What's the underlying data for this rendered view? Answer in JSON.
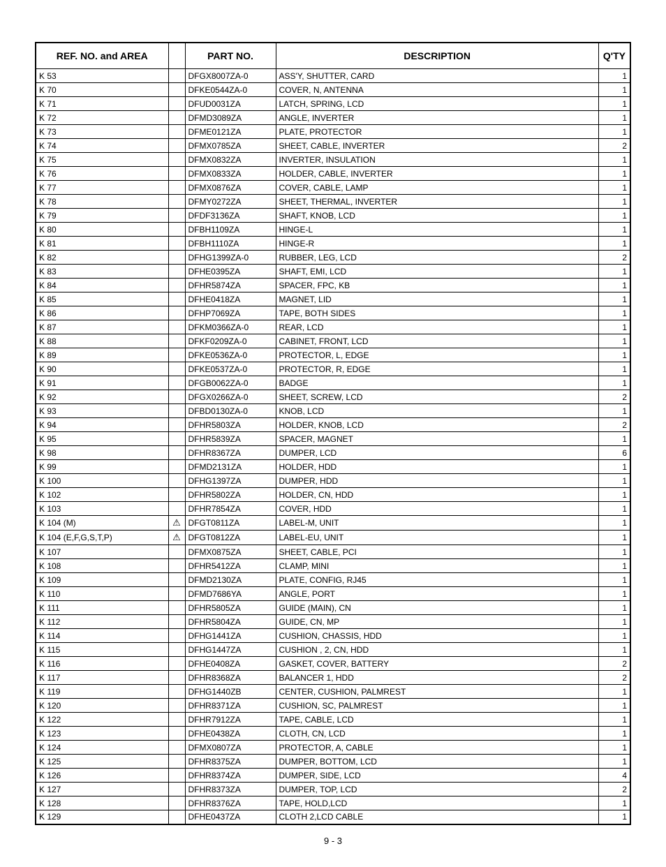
{
  "headers": {
    "ref": "REF. NO. and AREA",
    "warn": "",
    "part": "PART NO.",
    "desc": "DESCRIPTION",
    "qty": "Q'TY"
  },
  "rows": [
    {
      "ref": "K 53",
      "warn": "",
      "part": "DFGX8007ZA-0",
      "desc": "ASS'Y, SHUTTER, CARD",
      "qty": "1"
    },
    {
      "ref": "K 70",
      "warn": "",
      "part": "DFKE0544ZA-0",
      "desc": "COVER, N, ANTENNA",
      "qty": "1"
    },
    {
      "ref": "K 71",
      "warn": "",
      "part": "DFUD0031ZA",
      "desc": "LATCH, SPRING, LCD",
      "qty": "1"
    },
    {
      "ref": "K 72",
      "warn": "",
      "part": "DFMD3089ZA",
      "desc": "ANGLE, INVERTER",
      "qty": "1"
    },
    {
      "ref": "K 73",
      "warn": "",
      "part": "DFME0121ZA",
      "desc": "PLATE, PROTECTOR",
      "qty": "1"
    },
    {
      "ref": "K 74",
      "warn": "",
      "part": "DFMX0785ZA",
      "desc": "SHEET, CABLE, INVERTER",
      "qty": "2"
    },
    {
      "ref": "K 75",
      "warn": "",
      "part": "DFMX0832ZA",
      "desc": "INVERTER, INSULATION",
      "qty": "1"
    },
    {
      "ref": "K 76",
      "warn": "",
      "part": "DFMX0833ZA",
      "desc": "HOLDER, CABLE, INVERTER",
      "qty": "1"
    },
    {
      "ref": "K 77",
      "warn": "",
      "part": "DFMX0876ZA",
      "desc": "COVER, CABLE, LAMP",
      "qty": "1"
    },
    {
      "ref": "K 78",
      "warn": "",
      "part": "DFMY0272ZA",
      "desc": "SHEET, THERMAL, INVERTER",
      "qty": "1"
    },
    {
      "ref": "K 79",
      "warn": "",
      "part": "DFDF3136ZA",
      "desc": "SHAFT, KNOB, LCD",
      "qty": "1"
    },
    {
      "ref": "K 80",
      "warn": "",
      "part": "DFBH1109ZA",
      "desc": "HINGE-L",
      "qty": "1"
    },
    {
      "ref": "K 81",
      "warn": "",
      "part": "DFBH1110ZA",
      "desc": "HINGE-R",
      "qty": "1"
    },
    {
      "ref": "K 82",
      "warn": "",
      "part": "DFHG1399ZA-0",
      "desc": "RUBBER, LEG, LCD",
      "qty": "2"
    },
    {
      "ref": "K 83",
      "warn": "",
      "part": "DFHE0395ZA",
      "desc": "SHAFT, EMI, LCD",
      "qty": "1"
    },
    {
      "ref": "K 84",
      "warn": "",
      "part": "DFHR5874ZA",
      "desc": "SPACER, FPC, KB",
      "qty": "1"
    },
    {
      "ref": "K 85",
      "warn": "",
      "part": "DFHE0418ZA",
      "desc": "MAGNET, LID",
      "qty": "1"
    },
    {
      "ref": "K 86",
      "warn": "",
      "part": "DFHP7069ZA",
      "desc": "TAPE, BOTH SIDES",
      "qty": "1"
    },
    {
      "ref": "K 87",
      "warn": "",
      "part": "DFKM0366ZA-0",
      "desc": "REAR, LCD",
      "qty": "1"
    },
    {
      "ref": "K 88",
      "warn": "",
      "part": "DFKF0209ZA-0",
      "desc": "CABINET, FRONT, LCD",
      "qty": "1"
    },
    {
      "ref": "K 89",
      "warn": "",
      "part": "DFKE0536ZA-0",
      "desc": "PROTECTOR, L, EDGE",
      "qty": "1"
    },
    {
      "ref": "K 90",
      "warn": "",
      "part": "DFKE0537ZA-0",
      "desc": "PROTECTOR, R, EDGE",
      "qty": "1"
    },
    {
      "ref": "K 91",
      "warn": "",
      "part": "DFGB0062ZA-0",
      "desc": "BADGE",
      "qty": "1"
    },
    {
      "ref": "K 92",
      "warn": "",
      "part": "DFGX0266ZA-0",
      "desc": "SHEET, SCREW, LCD",
      "qty": "2"
    },
    {
      "ref": "K 93",
      "warn": "",
      "part": "DFBD0130ZA-0",
      "desc": "KNOB, LCD",
      "qty": "1"
    },
    {
      "ref": "K 94",
      "warn": "",
      "part": "DFHR5803ZA",
      "desc": "HOLDER, KNOB, LCD",
      "qty": "2"
    },
    {
      "ref": "K 95",
      "warn": "",
      "part": "DFHR5839ZA",
      "desc": "SPACER, MAGNET",
      "qty": "1"
    },
    {
      "ref": "K 98",
      "warn": "",
      "part": "DFHR8367ZA",
      "desc": "DUMPER, LCD",
      "qty": "6"
    },
    {
      "ref": "K 99",
      "warn": "",
      "part": "DFMD2131ZA",
      "desc": "HOLDER, HDD",
      "qty": "1"
    },
    {
      "ref": "K 100",
      "warn": "",
      "part": "DFHG1397ZA",
      "desc": "DUMPER, HDD",
      "qty": "1"
    },
    {
      "ref": "K 102",
      "warn": "",
      "part": "DFHR5802ZA",
      "desc": "HOLDER, CN, HDD",
      "qty": "1"
    },
    {
      "ref": "K 103",
      "warn": "",
      "part": "DFHR7854ZA",
      "desc": "COVER, HDD",
      "qty": "1"
    },
    {
      "ref": "K 104 (M)",
      "warn": "⚠",
      "part": "DFGT0811ZA",
      "desc": "LABEL-M, UNIT",
      "qty": "1"
    },
    {
      "ref": "K 104 (E,F,G,S,T,P)",
      "warn": "⚠",
      "part": "DFGT0812ZA",
      "desc": "LABEL-EU, UNIT",
      "qty": "1"
    },
    {
      "ref": "K 107",
      "warn": "",
      "part": "DFMX0875ZA",
      "desc": "SHEET, CABLE, PCI",
      "qty": "1"
    },
    {
      "ref": "K 108",
      "warn": "",
      "part": "DFHR5412ZA",
      "desc": "CLAMP, MINI",
      "qty": "1"
    },
    {
      "ref": "K 109",
      "warn": "",
      "part": "DFMD2130ZA",
      "desc": "PLATE, CONFIG, RJ45",
      "qty": "1"
    },
    {
      "ref": "K 110",
      "warn": "",
      "part": "DFMD7686YA",
      "desc": "ANGLE, PORT",
      "qty": "1"
    },
    {
      "ref": "K 111",
      "warn": "",
      "part": "DFHR5805ZA",
      "desc": "GUIDE (MAIN), CN",
      "qty": "1"
    },
    {
      "ref": "K 112",
      "warn": "",
      "part": "DFHR5804ZA",
      "desc": "GUIDE, CN, MP",
      "qty": "1"
    },
    {
      "ref": "K 114",
      "warn": "",
      "part": "DFHG1441ZA",
      "desc": "CUSHION, CHASSIS, HDD",
      "qty": "1"
    },
    {
      "ref": "K 115",
      "warn": "",
      "part": "DFHG1447ZA",
      "desc": "CUSHION , 2, CN, HDD",
      "qty": "1"
    },
    {
      "ref": "K 116",
      "warn": "",
      "part": "DFHE0408ZA",
      "desc": "GASKET, COVER, BATTERY",
      "qty": "2"
    },
    {
      "ref": "K 117",
      "warn": "",
      "part": "DFHR8368ZA",
      "desc": "BALANCER 1, HDD",
      "qty": "2"
    },
    {
      "ref": "K 119",
      "warn": "",
      "part": "DFHG1440ZB",
      "desc": "CENTER, CUSHION, PALMREST",
      "qty": "1"
    },
    {
      "ref": "K 120",
      "warn": "",
      "part": "DFHR8371ZA",
      "desc": "CUSHION, SC, PALMREST",
      "qty": "1"
    },
    {
      "ref": "K 122",
      "warn": "",
      "part": "DFHR7912ZA",
      "desc": "TAPE, CABLE, LCD",
      "qty": "1"
    },
    {
      "ref": "K 123",
      "warn": "",
      "part": "DFHE0438ZA",
      "desc": "CLOTH, CN, LCD",
      "qty": "1"
    },
    {
      "ref": "K 124",
      "warn": "",
      "part": "DFMX0807ZA",
      "desc": "PROTECTOR, A, CABLE",
      "qty": "1"
    },
    {
      "ref": "K 125",
      "warn": "",
      "part": "DFHR8375ZA",
      "desc": "DUMPER, BOTTOM, LCD",
      "qty": "1"
    },
    {
      "ref": "K 126",
      "warn": "",
      "part": "DFHR8374ZA",
      "desc": "DUMPER, SIDE, LCD",
      "qty": "4"
    },
    {
      "ref": "K 127",
      "warn": "",
      "part": "DFHR8373ZA",
      "desc": "DUMPER, TOP, LCD",
      "qty": "2"
    },
    {
      "ref": "K 128",
      "warn": "",
      "part": "DFHR8376ZA",
      "desc": "TAPE, HOLD,LCD",
      "qty": "1"
    },
    {
      "ref": "K 129",
      "warn": "",
      "part": "DFHE0437ZA",
      "desc": "CLOTH 2,LCD CABLE",
      "qty": "1"
    }
  ],
  "pageNumber": "9 - 3"
}
